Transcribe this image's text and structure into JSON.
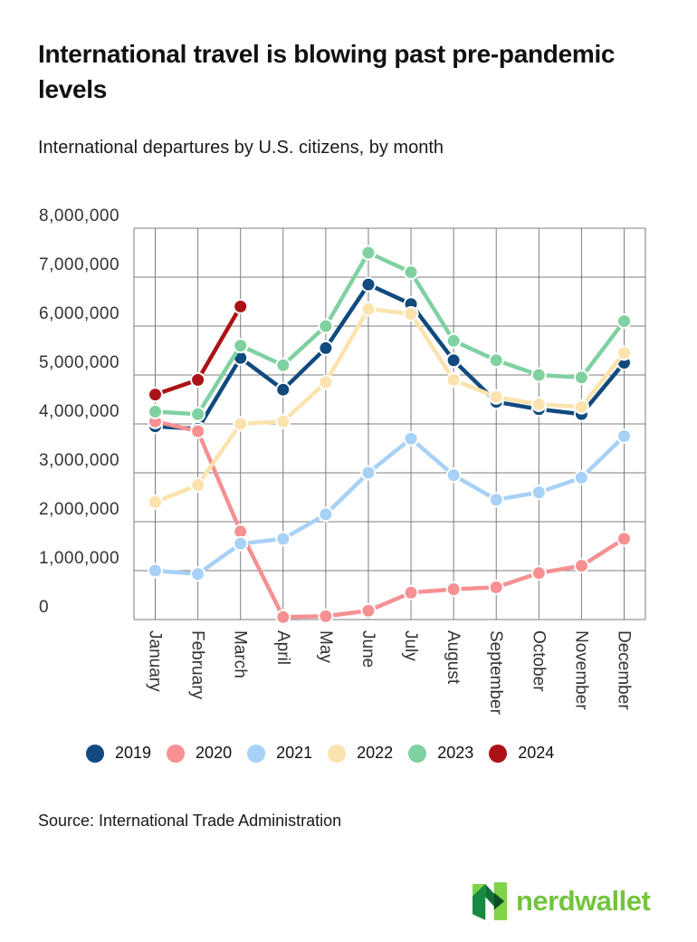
{
  "header": {
    "title": "International travel is blowing past pre-pandemic levels",
    "subtitle": "International departures by U.S. citizens, by month"
  },
  "chart_data": {
    "type": "line",
    "categories": [
      "January",
      "February",
      "March",
      "April",
      "May",
      "June",
      "July",
      "August",
      "September",
      "October",
      "November",
      "December"
    ],
    "series": [
      {
        "name": "2019",
        "color": "#114A7E",
        "values": [
          3950000,
          3900000,
          5350000,
          4700000,
          5550000,
          6850000,
          6450000,
          5300000,
          4450000,
          4300000,
          4200000,
          5250000
        ]
      },
      {
        "name": "2020",
        "color": "#F69092",
        "values": [
          4050000,
          3850000,
          1800000,
          50000,
          70000,
          180000,
          550000,
          620000,
          660000,
          950000,
          1100000,
          1650000
        ]
      },
      {
        "name": "2021",
        "color": "#A7D1F6",
        "values": [
          1000000,
          930000,
          1550000,
          1650000,
          2150000,
          3000000,
          3700000,
          2950000,
          2450000,
          2600000,
          2900000,
          3750000
        ]
      },
      {
        "name": "2022",
        "color": "#FBE3AE",
        "values": [
          2400000,
          2750000,
          4000000,
          4050000,
          4850000,
          6350000,
          6250000,
          4900000,
          4550000,
          4400000,
          4350000,
          5450000
        ]
      },
      {
        "name": "2023",
        "color": "#7FD1A1",
        "values": [
          4250000,
          4200000,
          5600000,
          5200000,
          6000000,
          7500000,
          7100000,
          5700000,
          5300000,
          5000000,
          4950000,
          6100000
        ]
      },
      {
        "name": "2024",
        "color": "#AB1217",
        "values": [
          4600000,
          4900000,
          6400000
        ]
      }
    ],
    "title": "International travel is blowing past pre-pandemic levels",
    "xlabel": "",
    "ylabel": "",
    "ylim": [
      0,
      8000000
    ],
    "ytick_step": 1000000,
    "yticks": [
      "0",
      "1,000,000",
      "2,000,000",
      "3,000,000",
      "4,000,000",
      "5,000,000",
      "6,000,000",
      "7,000,000",
      "8,000,000"
    ],
    "grid": true,
    "grid_color": "#7E7E7E",
    "tick_color": "#333333",
    "legend_position": "bottom"
  },
  "footer": {
    "source": "Source: International Trade Administration",
    "brand": "nerdwallet",
    "brand_color": "#74C43E",
    "brand_mark_colors": {
      "light_green": "#7FD348",
      "green": "#168A40",
      "dark_green": "#0F6F34",
      "forest": "#0A4E26"
    }
  }
}
